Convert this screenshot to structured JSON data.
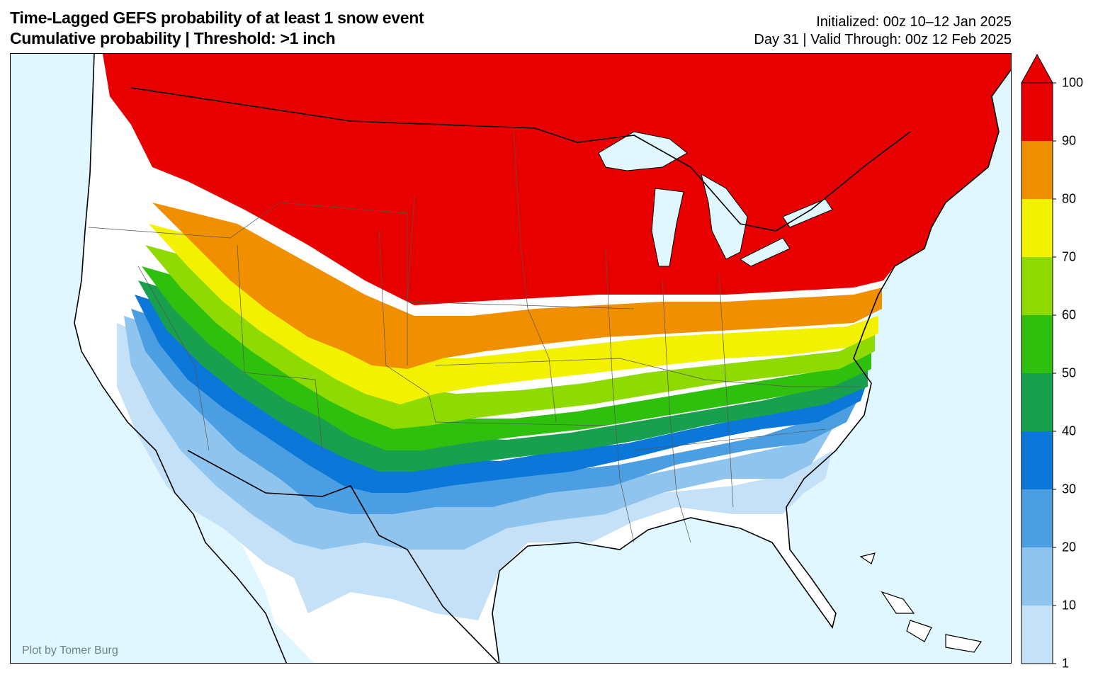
{
  "header": {
    "title_line1": "Time-Lagged GEFS probability of at least 1 snow event",
    "title_line2": "Cumulative probability | Threshold: >1 inch",
    "init_text": "Initialized: 00z 10–12 Jan 2025",
    "valid_text": "Day 31 | Valid Through: 00z 12 Feb 2025"
  },
  "map": {
    "credit": "Plot by Tomer Burg",
    "ocean_color": "#e0f7ff",
    "land_color": "#ffffff"
  },
  "colorbar": {
    "levels": [
      "1",
      "10",
      "20",
      "30",
      "40",
      "50",
      "60",
      "70",
      "80",
      "90",
      "100"
    ],
    "colors": [
      "#c5e1f7",
      "#8fc4ef",
      "#4c9ee2",
      "#0a77d9",
      "#18a04f",
      "#2fc00d",
      "#8fda00",
      "#f2f200",
      "#f09000",
      "#e80000"
    ],
    "extend": "max"
  }
}
